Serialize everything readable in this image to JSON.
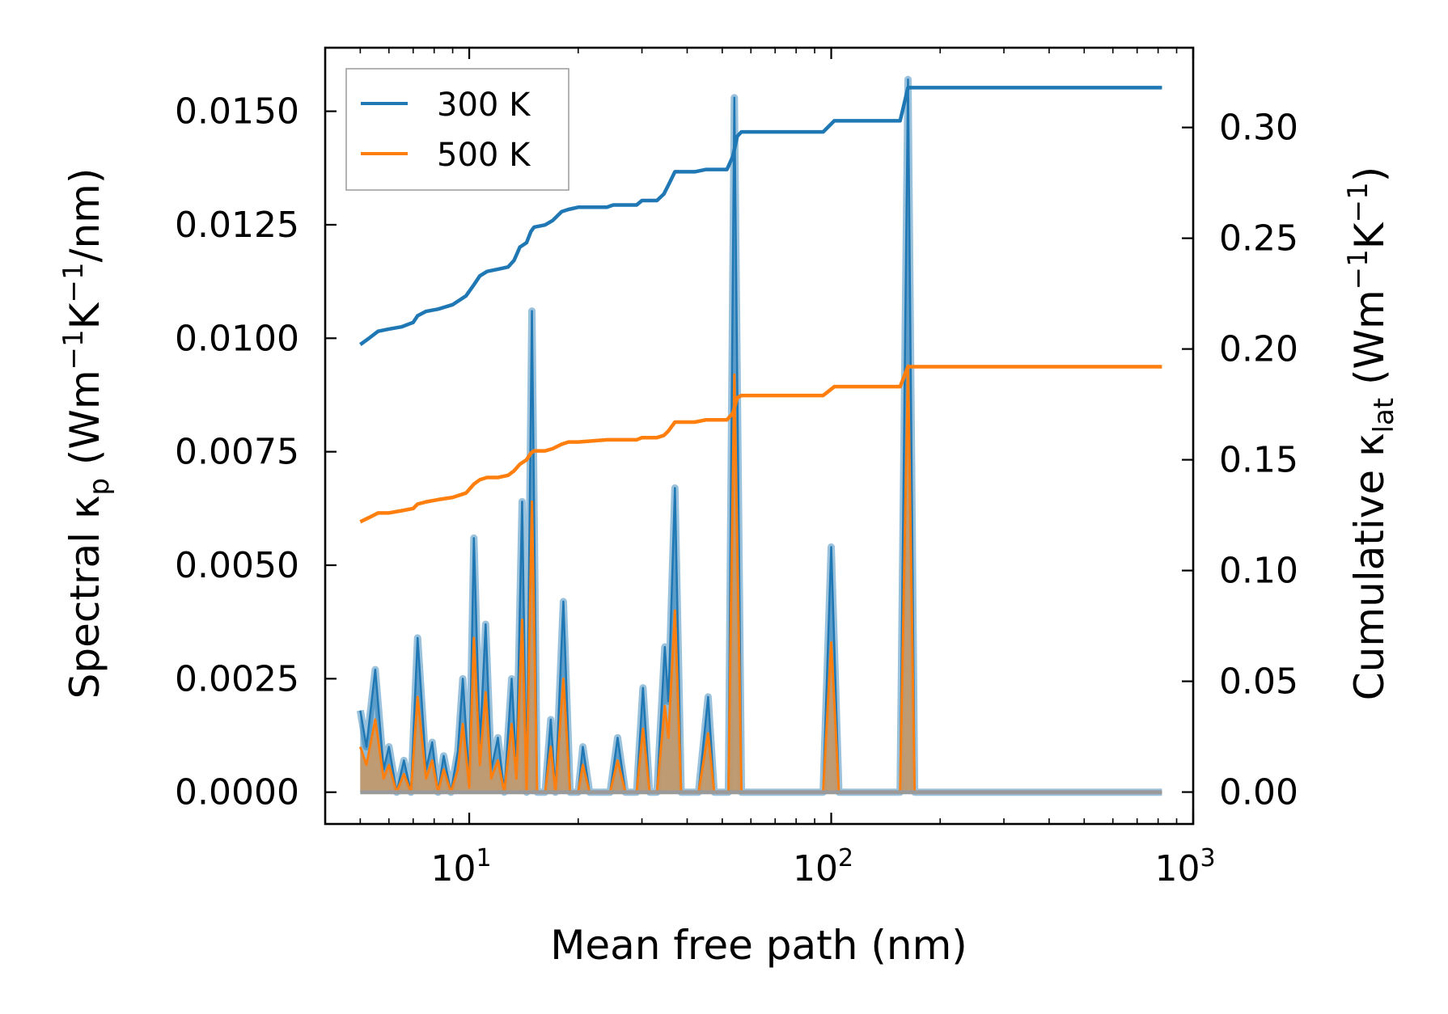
{
  "colors": {
    "s300": "#1f77b4",
    "s500": "#ff7f0e",
    "fill_overlap": "#c2996e",
    "axis": "#000000",
    "background": "#ffffff"
  },
  "chart_data": {
    "type": "line",
    "title": "",
    "xlabel": "Mean free path (nm)",
    "xscale": "log",
    "xlim": [
      4.0,
      1000
    ],
    "x_ticks": [
      {
        "value": 10,
        "base": "10",
        "exp": "1"
      },
      {
        "value": 100,
        "base": "10",
        "exp": "2"
      },
      {
        "value": 1000,
        "base": "10",
        "exp": "3"
      }
    ],
    "ylabel_left": {
      "main": "Spectral κ",
      "sub": "p",
      "unit_a": " (Wm",
      "sup_a": "−1",
      "unit_b": "K",
      "sup_b": "−1",
      "unit_c": "/nm)"
    },
    "ylim_left": [
      -0.0007,
      0.0164
    ],
    "yticks_left": [
      "0.0000",
      "0.0025",
      "0.0050",
      "0.0075",
      "0.0100",
      "0.0125",
      "0.0150"
    ],
    "ylabel_right": {
      "main": "Cumulative κ",
      "sub": "lat",
      "unit_a": " (Wm",
      "sup_a": "−1",
      "unit_b": "K",
      "sup_b": "−1",
      "unit_c": ")"
    },
    "ylim_right": [
      -0.0144,
      0.336
    ],
    "yticks_right": [
      "0.00",
      "0.05",
      "0.10",
      "0.15",
      "0.20",
      "0.25",
      "0.30"
    ],
    "legend": {
      "placement": "top-left",
      "entries": [
        {
          "label": "300 K",
          "color": "#1f77b4"
        },
        {
          "label": "500 K",
          "color": "#ff7f0e"
        }
      ]
    },
    "spectral_300K": [
      [
        5.0,
        0.0018
      ],
      [
        5.2,
        0.001
      ],
      [
        5.5,
        0.0027
      ],
      [
        5.8,
        0.0005
      ],
      [
        6.0,
        0.001
      ],
      [
        6.3,
        0.0
      ],
      [
        6.6,
        0.0007
      ],
      [
        6.9,
        0.0
      ],
      [
        7.2,
        0.0034
      ],
      [
        7.6,
        0.0005
      ],
      [
        7.9,
        0.0011
      ],
      [
        8.2,
        0.0
      ],
      [
        8.5,
        0.0008
      ],
      [
        8.9,
        0.0
      ],
      [
        9.3,
        0.0009
      ],
      [
        9.6,
        0.0025
      ],
      [
        10.0,
        0.0002
      ],
      [
        10.3,
        0.0056
      ],
      [
        10.7,
        0.001
      ],
      [
        11.1,
        0.0037
      ],
      [
        11.5,
        0.0005
      ],
      [
        12.0,
        0.0012
      ],
      [
        12.5,
        0.0
      ],
      [
        13.1,
        0.0025
      ],
      [
        13.5,
        0.0005
      ],
      [
        14.0,
        0.0064
      ],
      [
        14.4,
        0.0
      ],
      [
        14.9,
        0.0106
      ],
      [
        15.4,
        0.0
      ],
      [
        16.2,
        0.0
      ],
      [
        16.8,
        0.0016
      ],
      [
        17.3,
        0.0
      ],
      [
        18.2,
        0.0042
      ],
      [
        19.0,
        0.0
      ],
      [
        20.0,
        0.0
      ],
      [
        20.6,
        0.001
      ],
      [
        21.5,
        0.0
      ],
      [
        24.5,
        0.0
      ],
      [
        25.7,
        0.0012
      ],
      [
        27.0,
        0.0
      ],
      [
        29.0,
        0.0
      ],
      [
        30.2,
        0.0023
      ],
      [
        31.5,
        0.0
      ],
      [
        33.0,
        0.0
      ],
      [
        34.7,
        0.0032
      ],
      [
        35.5,
        0.002
      ],
      [
        37.0,
        0.0067
      ],
      [
        38.5,
        0.0
      ],
      [
        43.0,
        0.0
      ],
      [
        45.7,
        0.0021
      ],
      [
        47.5,
        0.0
      ],
      [
        52.0,
        0.0
      ],
      [
        54.0,
        0.0153
      ],
      [
        56.5,
        0.0
      ],
      [
        95.0,
        0.0
      ],
      [
        100.0,
        0.0054
      ],
      [
        105.0,
        0.0
      ],
      [
        155.0,
        0.0
      ],
      [
        163.0,
        0.0157
      ],
      [
        170.0,
        0.0
      ],
      [
        820.0,
        0.0
      ]
    ],
    "spectral_500K": [
      [
        5.0,
        0.001
      ],
      [
        5.2,
        0.0006
      ],
      [
        5.5,
        0.0016
      ],
      [
        5.8,
        0.0003
      ],
      [
        6.0,
        0.0006
      ],
      [
        6.3,
        0.0
      ],
      [
        6.6,
        0.0004
      ],
      [
        6.9,
        0.0
      ],
      [
        7.2,
        0.0021
      ],
      [
        7.6,
        0.0003
      ],
      [
        7.9,
        0.0007
      ],
      [
        8.2,
        0.0
      ],
      [
        8.5,
        0.0005
      ],
      [
        8.9,
        0.0
      ],
      [
        9.3,
        0.0005
      ],
      [
        9.6,
        0.0015
      ],
      [
        10.0,
        0.0001
      ],
      [
        10.3,
        0.0034
      ],
      [
        10.7,
        0.0006
      ],
      [
        11.1,
        0.0022
      ],
      [
        11.5,
        0.0003
      ],
      [
        12.0,
        0.0007
      ],
      [
        12.5,
        0.0
      ],
      [
        13.1,
        0.0015
      ],
      [
        13.5,
        0.0003
      ],
      [
        14.0,
        0.0038
      ],
      [
        14.4,
        0.0
      ],
      [
        14.9,
        0.0064
      ],
      [
        15.4,
        0.0
      ],
      [
        16.2,
        0.0
      ],
      [
        16.8,
        0.001
      ],
      [
        17.3,
        0.0
      ],
      [
        18.2,
        0.0025
      ],
      [
        19.0,
        0.0
      ],
      [
        20.0,
        0.0
      ],
      [
        20.6,
        0.0006
      ],
      [
        21.5,
        0.0
      ],
      [
        24.5,
        0.0
      ],
      [
        25.7,
        0.0007
      ],
      [
        27.0,
        0.0
      ],
      [
        29.0,
        0.0
      ],
      [
        30.2,
        0.0014
      ],
      [
        31.5,
        0.0
      ],
      [
        33.0,
        0.0
      ],
      [
        34.7,
        0.0019
      ],
      [
        35.5,
        0.0012
      ],
      [
        37.0,
        0.004
      ],
      [
        38.5,
        0.0
      ],
      [
        43.0,
        0.0
      ],
      [
        45.7,
        0.0013
      ],
      [
        47.5,
        0.0
      ],
      [
        52.0,
        0.0
      ],
      [
        54.0,
        0.0092
      ],
      [
        56.5,
        0.0
      ],
      [
        95.0,
        0.0
      ],
      [
        100.0,
        0.0033
      ],
      [
        105.0,
        0.0
      ],
      [
        155.0,
        0.0
      ],
      [
        163.0,
        0.0094
      ],
      [
        170.0,
        0.0
      ],
      [
        820.0,
        0.0
      ]
    ],
    "cumulative_300K": [
      [
        5.0,
        0.202
      ],
      [
        5.3,
        0.205
      ],
      [
        5.6,
        0.208
      ],
      [
        6.0,
        0.209
      ],
      [
        6.5,
        0.21
      ],
      [
        7.0,
        0.212
      ],
      [
        7.2,
        0.215
      ],
      [
        7.6,
        0.217
      ],
      [
        8.2,
        0.218
      ],
      [
        9.0,
        0.22
      ],
      [
        9.8,
        0.224
      ],
      [
        10.3,
        0.229
      ],
      [
        10.7,
        0.233
      ],
      [
        11.2,
        0.235
      ],
      [
        12.0,
        0.236
      ],
      [
        12.8,
        0.237
      ],
      [
        13.3,
        0.24
      ],
      [
        13.8,
        0.246
      ],
      [
        14.4,
        0.248
      ],
      [
        14.8,
        0.253
      ],
      [
        15.1,
        0.255
      ],
      [
        16.2,
        0.256
      ],
      [
        17.0,
        0.258
      ],
      [
        18.0,
        0.262
      ],
      [
        18.8,
        0.263
      ],
      [
        20.0,
        0.264
      ],
      [
        24.0,
        0.264
      ],
      [
        25.0,
        0.265
      ],
      [
        29.0,
        0.265
      ],
      [
        30.0,
        0.267
      ],
      [
        33.0,
        0.267
      ],
      [
        34.5,
        0.27
      ],
      [
        35.5,
        0.274
      ],
      [
        37.0,
        0.28
      ],
      [
        42.0,
        0.28
      ],
      [
        45.0,
        0.281
      ],
      [
        51.5,
        0.281
      ],
      [
        53.5,
        0.287
      ],
      [
        55.0,
        0.296
      ],
      [
        56.5,
        0.298
      ],
      [
        95.0,
        0.298
      ],
      [
        102.0,
        0.303
      ],
      [
        155.0,
        0.303
      ],
      [
        163.0,
        0.318
      ],
      [
        820.0,
        0.318
      ]
    ],
    "cumulative_500K": [
      [
        5.0,
        0.122
      ],
      [
        5.3,
        0.124
      ],
      [
        5.6,
        0.126
      ],
      [
        6.0,
        0.126
      ],
      [
        6.5,
        0.127
      ],
      [
        7.0,
        0.128
      ],
      [
        7.2,
        0.13
      ],
      [
        7.6,
        0.131
      ],
      [
        8.2,
        0.132
      ],
      [
        9.0,
        0.133
      ],
      [
        9.8,
        0.135
      ],
      [
        10.3,
        0.139
      ],
      [
        10.7,
        0.141
      ],
      [
        11.2,
        0.142
      ],
      [
        12.0,
        0.142
      ],
      [
        12.8,
        0.143
      ],
      [
        13.3,
        0.145
      ],
      [
        13.8,
        0.148
      ],
      [
        14.4,
        0.15
      ],
      [
        14.8,
        0.153
      ],
      [
        15.1,
        0.154
      ],
      [
        16.2,
        0.154
      ],
      [
        17.0,
        0.155
      ],
      [
        18.0,
        0.157
      ],
      [
        18.8,
        0.158
      ],
      [
        20.0,
        0.158
      ],
      [
        24.0,
        0.159
      ],
      [
        29.0,
        0.159
      ],
      [
        30.0,
        0.16
      ],
      [
        33.0,
        0.16
      ],
      [
        34.5,
        0.161
      ],
      [
        35.5,
        0.163
      ],
      [
        37.0,
        0.167
      ],
      [
        42.0,
        0.167
      ],
      [
        45.0,
        0.168
      ],
      [
        51.5,
        0.168
      ],
      [
        53.5,
        0.171
      ],
      [
        55.0,
        0.178
      ],
      [
        56.5,
        0.179
      ],
      [
        95.0,
        0.179
      ],
      [
        102.0,
        0.183
      ],
      [
        155.0,
        0.183
      ],
      [
        163.0,
        0.192
      ],
      [
        820.0,
        0.192
      ]
    ]
  }
}
